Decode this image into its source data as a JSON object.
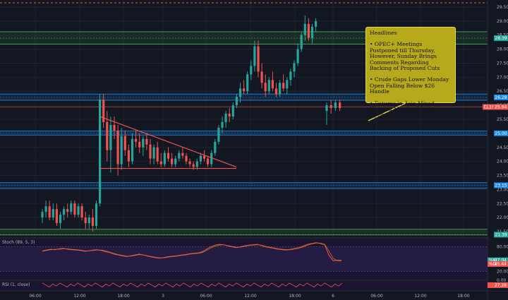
{
  "chart_data": {
    "type": "candlestick",
    "price_axis": {
      "ticks": [
        "29.50",
        "29.00",
        "28.50",
        "28.00",
        "27.50",
        "27.00",
        "26.50",
        "26.00",
        "25.50",
        "25.00",
        "24.50",
        "24.00",
        "23.50",
        "23.00",
        "22.50",
        "22.00",
        "21.50"
      ],
      "range": [
        21.35,
        29.65
      ]
    },
    "time_axis": {
      "ticks": [
        "06:00",
        "12:00",
        "18:00",
        "3",
        "06:00",
        "12:00",
        "18:00",
        "6",
        "06:00",
        "12:00",
        "18:00"
      ]
    },
    "price_labels": [
      {
        "text": "28.39",
        "value": 28.39,
        "color": "#26a69a"
      },
      {
        "text": "26.28",
        "value": 26.28,
        "color": "#1e88e5"
      },
      {
        "text": "CL1! 25.94",
        "value": 25.94,
        "color": "#ef5350"
      },
      {
        "text": "25.00",
        "value": 25.0,
        "color": "#1e88e5"
      },
      {
        "text": "23.15",
        "value": 23.15,
        "color": "#1e88e5"
      },
      {
        "text": "21.39",
        "value": 21.39,
        "color": "#26a69a"
      }
    ],
    "levels": [
      {
        "value": 28.39,
        "color": "#4caf50",
        "kind": "zone",
        "low": 28.18,
        "high": 28.62
      },
      {
        "value": 26.28,
        "color": "#1e88e5",
        "kind": "zone",
        "low": 26.18,
        "high": 26.4
      },
      {
        "value": 25.0,
        "color": "#1e88e5",
        "kind": "zone",
        "low": 24.94,
        "high": 25.08
      },
      {
        "value": 23.15,
        "color": "#1e88e5",
        "kind": "zone",
        "low": 23.04,
        "high": 23.24
      },
      {
        "value": 21.39,
        "color": "#4caf50",
        "kind": "zone",
        "low": 21.38,
        "high": 21.58
      },
      {
        "value": 25.94,
        "color": "#ef5350",
        "kind": "line"
      },
      {
        "value": 29.6,
        "color": "#ef5350",
        "kind": "dashed"
      }
    ],
    "candles": [
      [
        22.0,
        22.3,
        21.8,
        22.2
      ],
      [
        22.2,
        22.6,
        22.0,
        22.4
      ],
      [
        22.4,
        22.6,
        21.9,
        22.0
      ],
      [
        22.0,
        22.5,
        21.9,
        22.3
      ],
      [
        22.3,
        22.5,
        21.7,
        21.8
      ],
      [
        21.8,
        22.2,
        21.6,
        22.1
      ],
      [
        22.1,
        22.4,
        21.9,
        22.3
      ],
      [
        22.3,
        22.5,
        22.0,
        22.2
      ],
      [
        22.2,
        22.6,
        22.1,
        22.5
      ],
      [
        22.5,
        22.6,
        22.0,
        22.1
      ],
      [
        22.1,
        22.5,
        22.0,
        22.4
      ],
      [
        22.4,
        22.5,
        21.9,
        22.0
      ],
      [
        22.0,
        22.2,
        21.6,
        21.8
      ],
      [
        21.8,
        22.1,
        21.6,
        22.0
      ],
      [
        22.0,
        22.3,
        21.5,
        21.7
      ],
      [
        21.7,
        22.6,
        21.6,
        22.5
      ],
      [
        22.5,
        26.4,
        22.4,
        26.2
      ],
      [
        26.2,
        26.4,
        25.2,
        25.4
      ],
      [
        25.4,
        25.8,
        24.0,
        24.4
      ],
      [
        24.4,
        25.6,
        23.6,
        25.3
      ],
      [
        25.3,
        25.6,
        24.8,
        25.1
      ],
      [
        25.1,
        25.3,
        23.5,
        23.9
      ],
      [
        23.9,
        25.2,
        23.7,
        24.9
      ],
      [
        24.9,
        25.1,
        24.2,
        24.4
      ],
      [
        24.4,
        24.6,
        23.8,
        24.0
      ],
      [
        24.0,
        25.0,
        23.9,
        24.8
      ],
      [
        24.8,
        25.1,
        24.5,
        24.7
      ],
      [
        24.7,
        25.0,
        24.3,
        24.5
      ],
      [
        24.5,
        24.9,
        24.2,
        24.8
      ],
      [
        24.8,
        25.0,
        24.4,
        24.6
      ],
      [
        24.6,
        24.8,
        23.9,
        24.1
      ],
      [
        24.1,
        24.6,
        23.9,
        24.5
      ],
      [
        24.5,
        24.7,
        23.9,
        24.0
      ],
      [
        24.0,
        24.3,
        23.8,
        23.9
      ],
      [
        23.9,
        24.4,
        23.8,
        24.3
      ],
      [
        24.3,
        24.5,
        24.0,
        24.1
      ],
      [
        24.1,
        24.3,
        23.8,
        23.9
      ],
      [
        23.9,
        24.2,
        23.8,
        24.1
      ],
      [
        24.1,
        24.4,
        24.0,
        24.3
      ],
      [
        24.3,
        24.5,
        24.1,
        24.2
      ],
      [
        24.2,
        24.3,
        23.9,
        24.0
      ],
      [
        24.0,
        24.1,
        23.8,
        23.9
      ],
      [
        23.9,
        24.0,
        23.7,
        23.8
      ],
      [
        23.8,
        24.1,
        23.7,
        24.0
      ],
      [
        24.0,
        24.3,
        23.9,
        24.2
      ],
      [
        24.2,
        24.4,
        24.0,
        24.1
      ],
      [
        24.1,
        24.2,
        23.8,
        23.9
      ],
      [
        23.9,
        24.4,
        23.8,
        24.3
      ],
      [
        24.3,
        24.8,
        24.2,
        24.7
      ],
      [
        24.7,
        25.3,
        24.6,
        25.2
      ],
      [
        25.2,
        25.6,
        25.0,
        25.4
      ],
      [
        25.4,
        25.8,
        25.2,
        25.7
      ],
      [
        25.7,
        25.9,
        25.4,
        25.6
      ],
      [
        25.6,
        26.1,
        25.5,
        26.0
      ],
      [
        26.0,
        26.4,
        25.9,
        26.3
      ],
      [
        26.3,
        26.8,
        26.1,
        26.6
      ],
      [
        26.6,
        26.9,
        26.4,
        26.5
      ],
      [
        26.5,
        27.2,
        26.4,
        27.1
      ],
      [
        27.1,
        27.6,
        26.9,
        27.4
      ],
      [
        27.4,
        28.3,
        27.2,
        28.1
      ],
      [
        28.1,
        28.3,
        27.0,
        27.2
      ],
      [
        27.2,
        27.5,
        26.6,
        26.8
      ],
      [
        26.8,
        27.1,
        26.3,
        26.5
      ],
      [
        26.5,
        27.0,
        26.4,
        26.9
      ],
      [
        26.9,
        27.2,
        26.5,
        26.6
      ],
      [
        26.6,
        26.8,
        26.3,
        26.4
      ],
      [
        26.4,
        26.9,
        26.3,
        26.8
      ],
      [
        26.8,
        27.1,
        26.5,
        26.6
      ],
      [
        26.6,
        27.0,
        26.4,
        26.9
      ],
      [
        26.9,
        27.3,
        26.7,
        27.2
      ],
      [
        27.2,
        27.6,
        27.0,
        27.5
      ],
      [
        27.5,
        28.2,
        27.4,
        28.0
      ],
      [
        28.0,
        28.6,
        27.9,
        28.5
      ],
      [
        28.5,
        29.2,
        28.3,
        28.9
      ],
      [
        28.9,
        29.1,
        28.3,
        28.4
      ],
      [
        28.4,
        28.9,
        28.2,
        28.8
      ],
      [
        28.8,
        29.1,
        28.6,
        29.0
      ],
      [
        25.8,
        26.1,
        25.3,
        26.0
      ],
      [
        26.0,
        26.2,
        25.7,
        25.9
      ],
      [
        25.9,
        26.2,
        25.8,
        26.1
      ],
      [
        26.1,
        26.2,
        25.8,
        25.9
      ]
    ],
    "trendlines": [
      {
        "name": "triangle-upper",
        "from": [
          16,
          25.6
        ],
        "to": [
          44,
          23.8
        ],
        "color": "#ef5350"
      },
      {
        "name": "triangle-lower",
        "from": [
          16,
          23.75
        ],
        "to": [
          44,
          23.75
        ],
        "color": "#ef5350"
      }
    ],
    "stoch": {
      "title": "Stoch (89, 5, 3)",
      "ticks": [
        "80.00",
        "20.00"
      ],
      "range": [
        0,
        100
      ],
      "k_label": "47.04",
      "d_label": "45.44",
      "k": [
        70,
        72,
        74,
        73,
        75,
        76,
        74,
        73,
        72,
        71,
        69,
        70,
        72,
        73,
        71,
        68,
        66,
        62,
        60,
        58,
        56,
        58,
        60,
        62,
        60,
        57,
        55,
        53,
        52,
        54,
        56,
        57,
        58,
        60,
        61,
        63,
        64,
        65,
        68,
        74,
        80,
        84,
        86,
        85,
        82,
        80,
        78,
        80,
        82,
        84,
        85,
        86,
        83,
        80,
        78,
        76,
        74,
        73,
        72,
        74,
        76,
        78,
        82,
        86,
        88,
        90,
        88,
        85,
        60,
        46,
        47,
        47
      ],
      "d": [
        69,
        71,
        73,
        74,
        74,
        75,
        75,
        74,
        73,
        72,
        70,
        70,
        71,
        72,
        72,
        70,
        67,
        64,
        61,
        59,
        57,
        57,
        59,
        61,
        60,
        58,
        56,
        54,
        53,
        53,
        55,
        56,
        57,
        59,
        60,
        62,
        63,
        64,
        66,
        71,
        77,
        81,
        84,
        85,
        83,
        81,
        79,
        79,
        81,
        83,
        84,
        85,
        84,
        81,
        79,
        77,
        75,
        74,
        73,
        73,
        75,
        77,
        80,
        84,
        87,
        89,
        89,
        86,
        70,
        52,
        46,
        45
      ],
      "k_color": "#ef5350",
      "d_color": "#ff9800"
    },
    "rsi": {
      "title": "RSI (1, close)",
      "ticks": [
        "0.00"
      ],
      "label": "27.28",
      "color": "#ef5350"
    },
    "title": "",
    "xlabel": "",
    "ylabel": ""
  },
  "headlines": {
    "title": "Headlines",
    "items": [
      "• OPEC+ Meetings Postponed till Thursday, However, Sunday Brings Comments Regarding Backing of Proposed Cuts",
      "• Crude Gaps Lower Monday Open Falling Below $26 Handle",
      "• Futures in Asia Mixed Nearing Monday Market Open"
    ],
    "background": "#b6a91c",
    "text_color": "#141414"
  },
  "colors": {
    "background": "#131722",
    "up": "#26a69a",
    "down": "#ef5350",
    "grid": "#1e222d",
    "zone_green": "#4caf50",
    "zone_blue": "#1e88e5",
    "callout": "#e6d84a"
  }
}
